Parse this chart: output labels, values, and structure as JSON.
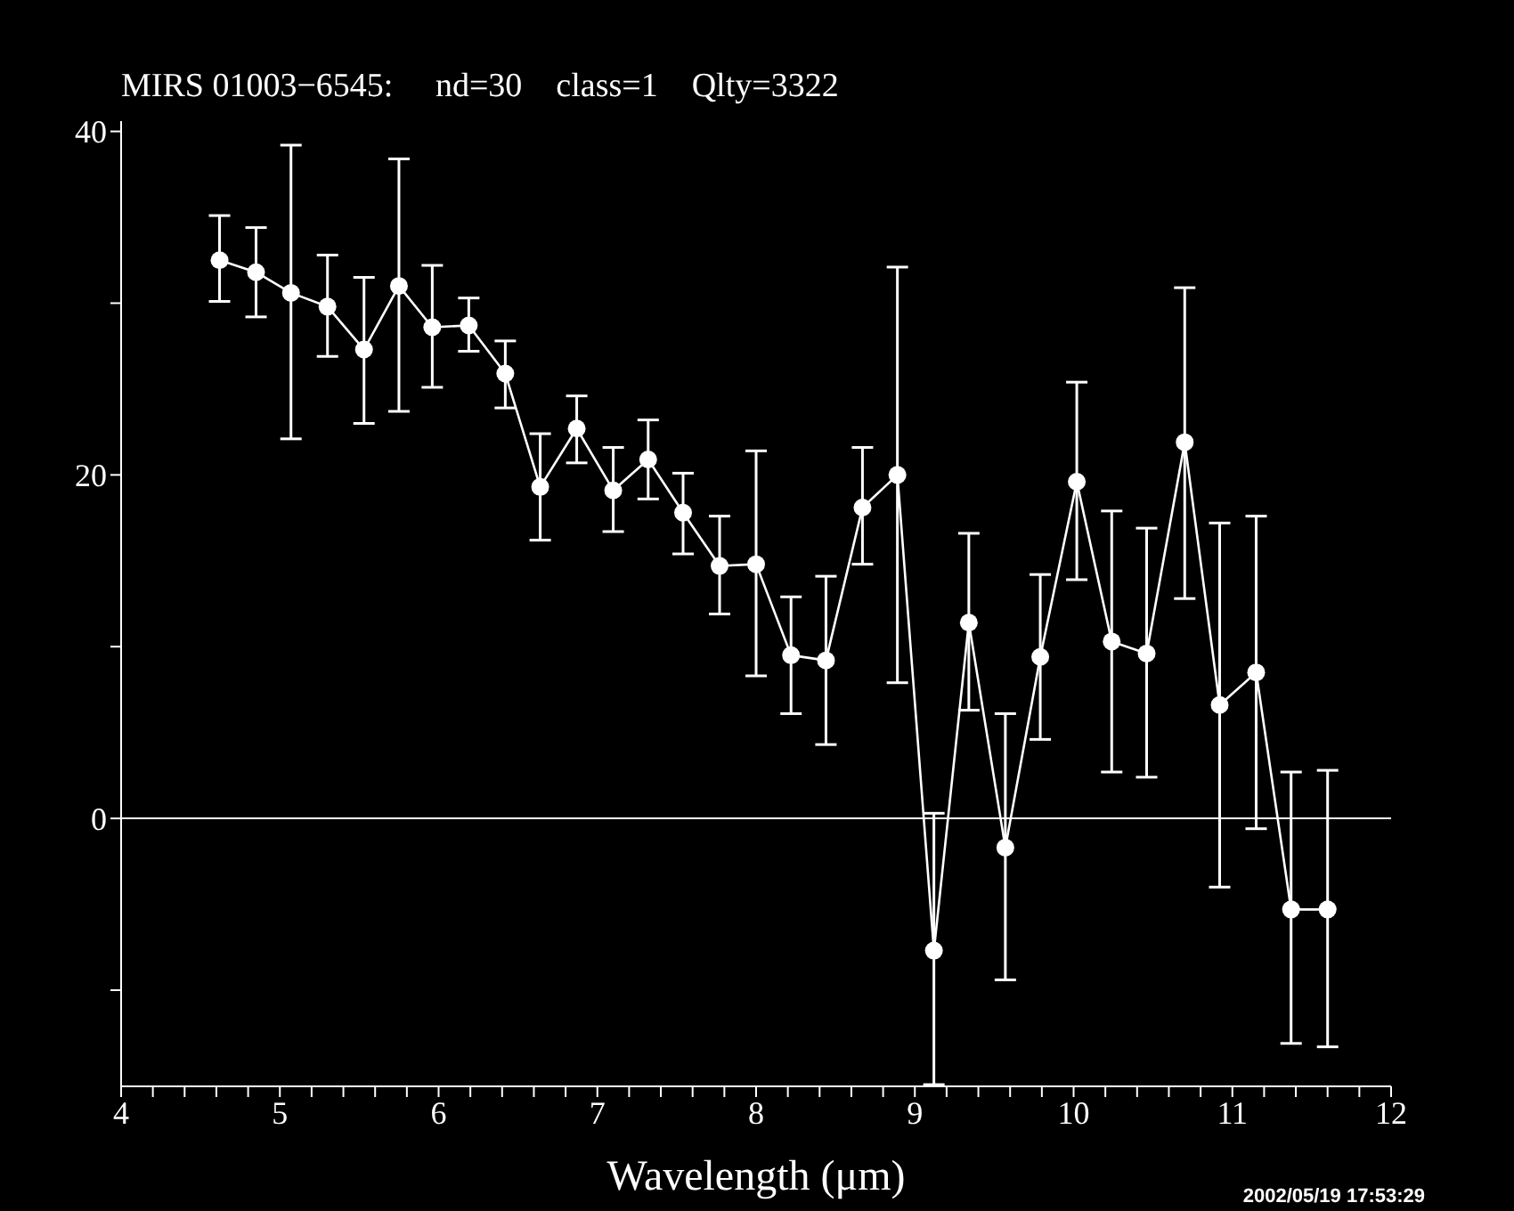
{
  "chart_data": {
    "type": "line",
    "title": "MIRS 01003−6545:     nd=30    class=1    Qlty=3322",
    "xlabel": "Wavelength (μm)",
    "x": [
      4.62,
      4.85,
      5.07,
      5.3,
      5.53,
      5.75,
      5.96,
      6.19,
      6.42,
      6.64,
      6.87,
      7.1,
      7.32,
      7.54,
      7.77,
      8.0,
      8.22,
      8.44,
      8.67,
      8.89,
      9.12,
      9.34,
      9.57,
      9.79,
      10.02,
      10.24,
      10.46,
      10.7,
      10.92,
      11.15,
      11.37,
      11.6
    ],
    "series": [
      {
        "color": "#ffffff",
        "values": [
          32.5,
          31.8,
          30.6,
          29.8,
          27.3,
          31.0,
          28.6,
          28.7,
          25.9,
          19.3,
          22.7,
          19.1,
          20.9,
          17.8,
          14.7,
          14.8,
          9.5,
          9.2,
          18.1,
          20.0,
          -7.7,
          11.4,
          -1.7,
          9.4,
          19.6,
          10.3,
          9.6,
          21.9,
          6.6,
          8.5,
          -5.3,
          -5.3
        ],
        "errors": [
          [
            30.1,
            35.1
          ],
          [
            29.2,
            34.4
          ],
          [
            22.1,
            39.2
          ],
          [
            26.9,
            32.8
          ],
          [
            23.0,
            31.5
          ],
          [
            23.7,
            38.4
          ],
          [
            25.1,
            32.2
          ],
          [
            27.2,
            30.3
          ],
          [
            23.9,
            27.8
          ],
          [
            16.2,
            22.4
          ],
          [
            20.7,
            24.6
          ],
          [
            16.7,
            21.6
          ],
          [
            18.6,
            23.2
          ],
          [
            15.4,
            20.1
          ],
          [
            11.9,
            17.6
          ],
          [
            8.3,
            21.4
          ],
          [
            6.1,
            12.9
          ],
          [
            4.3,
            14.1
          ],
          [
            14.8,
            21.6
          ],
          [
            7.9,
            32.1
          ],
          [
            -15.5,
            0.3
          ],
          [
            6.3,
            16.6
          ],
          [
            -9.4,
            6.1
          ],
          [
            4.6,
            14.2
          ],
          [
            13.9,
            25.4
          ],
          [
            2.7,
            17.9
          ],
          [
            2.4,
            16.9
          ],
          [
            12.8,
            30.9
          ],
          [
            -4.0,
            17.2
          ],
          [
            -0.6,
            17.6
          ],
          [
            -13.1,
            2.7
          ],
          [
            -13.3,
            2.8
          ]
        ]
      }
    ],
    "xlim": [
      4,
      12
    ],
    "xticks": [
      4,
      {
        "value": 4.2,
        "label": null
      },
      {
        "value": 4.4,
        "label": null
      },
      {
        "value": 4.6,
        "label": null
      },
      {
        "value": 4.8,
        "label": null
      },
      5,
      {
        "value": 5.2,
        "label": null
      },
      {
        "value": 5.4,
        "label": null
      },
      {
        "value": 5.6,
        "label": null
      },
      {
        "value": 5.8,
        "label": null
      },
      6,
      {
        "value": 6.2,
        "label": null
      },
      {
        "value": 6.4,
        "label": null
      },
      {
        "value": 6.6,
        "label": null
      },
      {
        "value": 6.8,
        "label": null
      },
      7,
      {
        "value": 7.2,
        "label": null
      },
      {
        "value": 7.4,
        "label": null
      },
      {
        "value": 7.6,
        "label": null
      },
      {
        "value": 7.8,
        "label": null
      },
      8,
      {
        "value": 8.2,
        "label": null
      },
      {
        "value": 8.4,
        "label": null
      },
      {
        "value": 8.6,
        "label": null
      },
      {
        "value": 8.8,
        "label": null
      },
      9,
      {
        "value": 9.2,
        "label": null
      },
      {
        "value": 9.4,
        "label": null
      },
      {
        "value": 9.6,
        "label": null
      },
      {
        "value": 9.8,
        "label": null
      },
      10,
      {
        "value": 10.2,
        "label": null
      },
      {
        "value": 10.4,
        "label": null
      },
      {
        "value": 10.6,
        "label": null
      },
      {
        "value": 10.8,
        "label": null
      },
      11,
      {
        "value": 11.2,
        "label": null
      },
      {
        "value": 11.4,
        "label": null
      },
      {
        "value": 11.6,
        "label": null
      },
      {
        "value": 11.8,
        "label": null
      },
      12
    ],
    "ylim": [
      -15.6,
      40.6
    ],
    "yticks": [
      {
        "value": -10,
        "label": null
      },
      0,
      {
        "value": 10,
        "label": null
      },
      20,
      {
        "value": 30,
        "label": null
      },
      40
    ],
    "ref_lines": [
      {
        "axis": "y",
        "value": 0,
        "color": "#ffffff"
      }
    ],
    "marker": "circle",
    "annotations": [
      "2002/05/19 17:53:29"
    ]
  }
}
